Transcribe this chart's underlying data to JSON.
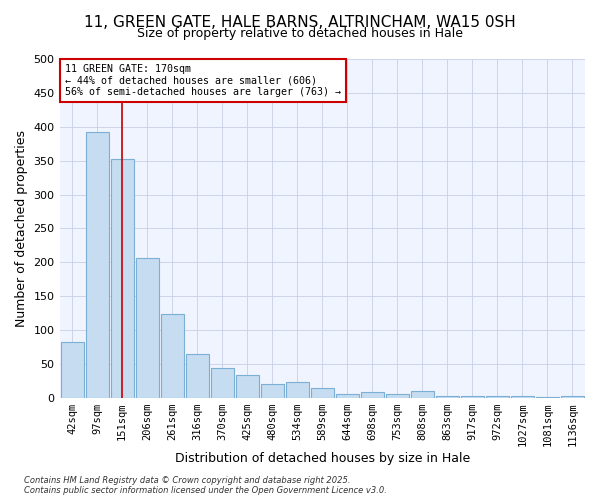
{
  "title_line1": "11, GREEN GATE, HALE BARNS, ALTRINCHAM, WA15 0SH",
  "title_line2": "Size of property relative to detached houses in Hale",
  "xlabel": "Distribution of detached houses by size in Hale",
  "ylabel": "Number of detached properties",
  "bar_color": "#c6dcf0",
  "bar_edge_color": "#7bafd4",
  "background_color": "#ffffff",
  "plot_bg_color": "#f0f4ff",
  "grid_color": "#c8d0e8",
  "categories": [
    "42sqm",
    "97sqm",
    "151sqm",
    "206sqm",
    "261sqm",
    "316sqm",
    "370sqm",
    "425sqm",
    "480sqm",
    "534sqm",
    "589sqm",
    "644sqm",
    "698sqm",
    "753sqm",
    "808sqm",
    "863sqm",
    "917sqm",
    "972sqm",
    "1027sqm",
    "1081sqm",
    "1136sqm"
  ],
  "values": [
    82,
    392,
    353,
    206,
    124,
    64,
    44,
    34,
    20,
    23,
    14,
    6,
    9,
    6,
    10,
    3,
    2,
    2,
    2,
    1,
    2
  ],
  "ylim": [
    0,
    500
  ],
  "yticks": [
    0,
    50,
    100,
    150,
    200,
    250,
    300,
    350,
    400,
    450,
    500
  ],
  "red_line_x": 2.0,
  "annotation_line1": "11 GREEN GATE: 170sqm",
  "annotation_line2": "← 44% of detached houses are smaller (606)",
  "annotation_line3": "56% of semi-detached houses are larger (763) →",
  "annotation_box_color": "#ffffff",
  "annotation_border_color": "#cc0000",
  "footer_line1": "Contains HM Land Registry data © Crown copyright and database right 2025.",
  "footer_line2": "Contains public sector information licensed under the Open Government Licence v3.0.",
  "title_fontsize": 11,
  "subtitle_fontsize": 9,
  "axis_label_fontsize": 9,
  "tick_fontsize": 7.5
}
